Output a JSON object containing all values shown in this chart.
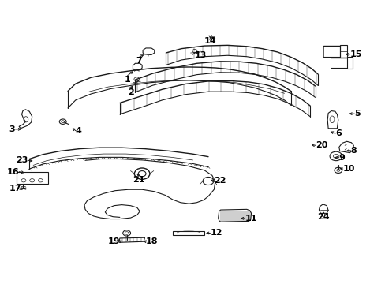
{
  "background_color": "#ffffff",
  "line_color": "#1a1a1a",
  "fig_width": 4.89,
  "fig_height": 3.6,
  "dpi": 100,
  "label_positions": {
    "1": [
      0.33,
      0.735,
      "left"
    ],
    "2": [
      0.338,
      0.69,
      "left"
    ],
    "3": [
      0.038,
      0.545,
      "right"
    ],
    "4": [
      0.195,
      0.54,
      "left"
    ],
    "5": [
      0.92,
      0.6,
      "left"
    ],
    "6": [
      0.87,
      0.53,
      "left"
    ],
    "7": [
      0.36,
      0.8,
      "left"
    ],
    "8": [
      0.91,
      0.47,
      "left"
    ],
    "9": [
      0.88,
      0.445,
      "left"
    ],
    "10": [
      0.89,
      0.405,
      "left"
    ],
    "11": [
      0.635,
      0.23,
      "left"
    ],
    "12": [
      0.545,
      0.178,
      "left"
    ],
    "13": [
      0.52,
      0.82,
      "left"
    ],
    "14": [
      0.545,
      0.87,
      "left"
    ],
    "15": [
      0.908,
      0.81,
      "left"
    ],
    "16": [
      0.048,
      0.395,
      "right"
    ],
    "17": [
      0.055,
      0.335,
      "right"
    ],
    "18": [
      0.378,
      0.148,
      "left"
    ],
    "19": [
      0.31,
      0.148,
      "right"
    ],
    "20": [
      0.82,
      0.488,
      "left"
    ],
    "21": [
      0.36,
      0.38,
      "left"
    ],
    "22": [
      0.555,
      0.362,
      "left"
    ],
    "23": [
      0.072,
      0.435,
      "right"
    ],
    "24": [
      0.84,
      0.248,
      "left"
    ]
  },
  "arrows": {
    "1": [
      0.33,
      0.735,
      0.35,
      0.755
    ],
    "2": [
      0.338,
      0.69,
      0.348,
      0.705
    ],
    "3": [
      0.038,
      0.545,
      0.06,
      0.545
    ],
    "4": [
      0.195,
      0.54,
      0.182,
      0.555
    ],
    "5": [
      0.92,
      0.6,
      0.9,
      0.6
    ],
    "6": [
      0.87,
      0.53,
      0.852,
      0.54
    ],
    "7": [
      0.36,
      0.8,
      0.378,
      0.812
    ],
    "8": [
      0.91,
      0.47,
      0.893,
      0.468
    ],
    "9": [
      0.88,
      0.445,
      0.862,
      0.445
    ],
    "10": [
      0.89,
      0.405,
      0.875,
      0.408
    ],
    "11": [
      0.635,
      0.23,
      0.618,
      0.23
    ],
    "12": [
      0.545,
      0.178,
      0.528,
      0.178
    ],
    "13": [
      0.52,
      0.82,
      0.5,
      0.808
    ],
    "14": [
      0.545,
      0.87,
      0.545,
      0.858
    ],
    "15": [
      0.908,
      0.81,
      0.89,
      0.81
    ],
    "16": [
      0.048,
      0.395,
      0.068,
      0.39
    ],
    "17": [
      0.055,
      0.335,
      0.068,
      0.338
    ],
    "18": [
      0.378,
      0.148,
      0.365,
      0.152
    ],
    "19": [
      0.31,
      0.148,
      0.322,
      0.155
    ],
    "20": [
      0.82,
      0.488,
      0.802,
      0.49
    ],
    "21": [
      0.36,
      0.38,
      0.35,
      0.392
    ],
    "22": [
      0.555,
      0.362,
      0.54,
      0.368
    ],
    "23": [
      0.072,
      0.435,
      0.09,
      0.432
    ],
    "24": [
      0.84,
      0.248,
      0.838,
      0.262
    ]
  }
}
